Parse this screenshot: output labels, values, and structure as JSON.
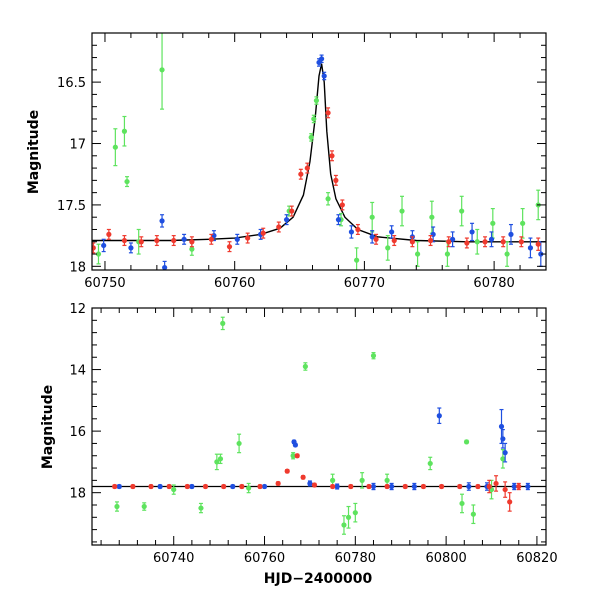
{
  "figure": {
    "xlabel": "HJD−2400000",
    "ylabel": "Magnitude"
  },
  "colors": {
    "green": "#5ee35e",
    "blue": "#1f4fe0",
    "red": "#ef3a2e",
    "model": "#000000"
  },
  "chart_data": [
    {
      "type": "scatter",
      "title": "",
      "xlabel": "",
      "ylabel": "Magnitude",
      "xlim": [
        60749,
        60784
      ],
      "ylim": [
        18.03,
        16.1
      ],
      "y_inverted": true,
      "xticks": [
        60750,
        60760,
        60770,
        60780
      ],
      "yticks": [
        16.5,
        17,
        17.5,
        18
      ],
      "ytick_labels": [
        "16.5",
        "17",
        "17.5",
        "18"
      ],
      "model_curve": {
        "x": [
          60749,
          60752,
          60755,
          60758,
          60760,
          60762,
          60763.5,
          60764.5,
          60765.3,
          60765.8,
          60766.2,
          60766.5,
          60766.7,
          60766.9,
          60767.1,
          60767.4,
          60767.8,
          60768.5,
          60769.5,
          60771,
          60774,
          60778,
          60784
        ],
        "y": [
          17.79,
          17.79,
          17.79,
          17.78,
          17.77,
          17.74,
          17.69,
          17.6,
          17.42,
          17.15,
          16.8,
          16.45,
          16.35,
          16.5,
          16.9,
          17.25,
          17.45,
          17.6,
          17.7,
          17.76,
          17.79,
          17.8,
          17.8
        ]
      },
      "series": [
        {
          "color": "green",
          "x": [
            60749.5,
            60750.8,
            60751.5,
            60751.7,
            60752.6,
            60754.4,
            60756.7,
            60764.2,
            60765.9,
            60766.1,
            60766.3,
            60767.2,
            60768.2,
            60769.4,
            60770.6,
            60771.8,
            60772.9,
            60774.1,
            60775.2,
            60776.4,
            60777.5,
            60778.7,
            60779.9,
            60781.0,
            60782.2,
            60783.4
          ],
          "y": [
            17.9,
            17.03,
            16.9,
            17.31,
            17.8,
            16.4,
            17.86,
            17.55,
            16.95,
            16.8,
            16.65,
            17.45,
            17.62,
            17.95,
            17.6,
            17.85,
            17.55,
            17.9,
            17.6,
            17.9,
            17.55,
            17.8,
            17.65,
            17.9,
            17.65,
            17.5
          ],
          "err": [
            0.08,
            0.15,
            0.12,
            0.04,
            0.1,
            0.32,
            0.05,
            0.04,
            0.03,
            0.03,
            0.03,
            0.05,
            0.05,
            0.1,
            0.12,
            0.1,
            0.12,
            0.1,
            0.13,
            0.1,
            0.12,
            0.1,
            0.12,
            0.1,
            0.12,
            0.12
          ]
        },
        {
          "color": "blue",
          "x": [
            60749.9,
            60752.0,
            60754.4,
            60754.6,
            60756.1,
            60758.4,
            60760.2,
            60762.0,
            60764.0,
            60766.5,
            60766.7,
            60766.9,
            60768.0,
            60769.0,
            60770.6,
            60772.1,
            60773.7,
            60775.3,
            60776.8,
            60778.3,
            60779.8,
            60781.3,
            60782.8,
            60783.6
          ],
          "y": [
            17.83,
            17.85,
            17.63,
            18.01,
            17.78,
            17.75,
            17.78,
            17.74,
            17.62,
            16.34,
            16.31,
            16.45,
            17.62,
            17.72,
            17.76,
            17.72,
            17.76,
            17.74,
            17.78,
            17.72,
            17.78,
            17.74,
            17.85,
            17.9
          ],
          "err": [
            0.05,
            0.04,
            0.05,
            0.05,
            0.04,
            0.04,
            0.04,
            0.04,
            0.04,
            0.03,
            0.03,
            0.03,
            0.04,
            0.05,
            0.05,
            0.05,
            0.05,
            0.06,
            0.06,
            0.07,
            0.06,
            0.08,
            0.08,
            0.1
          ]
        },
        {
          "color": "red",
          "x": [
            60749.1,
            60750.3,
            60751.5,
            60752.8,
            60754.0,
            60755.3,
            60756.7,
            60758.2,
            60759.6,
            60761.0,
            60762.2,
            60763.4,
            60764.4,
            60765.1,
            60765.6,
            60767.2,
            60767.5,
            60767.8,
            60768.3,
            60769.5,
            60770.9,
            60772.3,
            60773.7,
            60775.1,
            60776.5,
            60777.9,
            60779.3,
            60780.7,
            60782.1,
            60783.4
          ],
          "y": [
            17.85,
            17.74,
            17.79,
            17.8,
            17.79,
            17.79,
            17.8,
            17.78,
            17.84,
            17.77,
            17.73,
            17.68,
            17.55,
            17.25,
            17.2,
            16.75,
            17.1,
            17.3,
            17.5,
            17.7,
            17.78,
            17.79,
            17.8,
            17.79,
            17.8,
            17.81,
            17.8,
            17.8,
            17.8,
            17.82
          ],
          "err": [
            0.04,
            0.04,
            0.04,
            0.04,
            0.04,
            0.04,
            0.04,
            0.04,
            0.04,
            0.04,
            0.04,
            0.04,
            0.04,
            0.04,
            0.04,
            0.04,
            0.04,
            0.04,
            0.04,
            0.04,
            0.04,
            0.04,
            0.04,
            0.04,
            0.04,
            0.04,
            0.04,
            0.04,
            0.04,
            0.05
          ]
        }
      ]
    },
    {
      "type": "scatter",
      "title": "",
      "xlabel": "HJD−2400000",
      "ylabel": "Magnitude",
      "xlim": [
        60722,
        60822
      ],
      "ylim": [
        19.7,
        12
      ],
      "y_inverted": true,
      "xticks": [
        60740,
        60760,
        60780,
        60800,
        60820
      ],
      "yticks": [
        12,
        14,
        16,
        18
      ],
      "ytick_labels": [
        "12",
        "14",
        "16",
        "18"
      ],
      "reference_line": 17.8,
      "series": [
        {
          "color": "green",
          "x": [
            60727.5,
            60733.5,
            60740.0,
            60746.0,
            60749.5,
            60750.3,
            60750.8,
            60754.4,
            60756.5,
            60766.3,
            60769.0,
            60775.0,
            60777.5,
            60778.5,
            60780.0,
            60781.5,
            60784.0,
            60787.0,
            60796.5,
            60803.5,
            60804.5,
            60806.0,
            60810.0,
            60812.5
          ],
          "y": [
            18.45,
            18.45,
            17.9,
            18.5,
            17.0,
            16.9,
            12.5,
            16.4,
            17.85,
            16.8,
            13.9,
            17.6,
            19.05,
            18.8,
            18.65,
            17.6,
            13.55,
            17.6,
            17.05,
            18.35,
            16.35,
            18.7,
            17.9,
            16.9
          ],
          "err": [
            0.15,
            0.12,
            0.15,
            0.15,
            0.25,
            0.15,
            0.2,
            0.3,
            0.15,
            0.1,
            0.12,
            0.2,
            0.3,
            0.35,
            0.3,
            0.25,
            0.1,
            0.2,
            0.2,
            0.3,
            0.05,
            0.3,
            0.3,
            0.3
          ]
        },
        {
          "color": "blue",
          "x": [
            60728.0,
            60737.0,
            60744.0,
            60753.0,
            60760.0,
            60766.5,
            60766.8,
            60770.0,
            60776.0,
            60784.0,
            60788.0,
            60793.0,
            60798.5,
            60805.0,
            60809.0,
            60812.2,
            60812.5,
            60813.0,
            60815.0,
            60818.0
          ],
          "y": [
            17.8,
            17.8,
            17.8,
            17.8,
            17.8,
            16.35,
            16.45,
            17.7,
            17.8,
            17.8,
            17.8,
            17.8,
            15.5,
            17.8,
            17.8,
            15.85,
            16.25,
            16.7,
            17.8,
            17.8
          ],
          "err": [
            0.05,
            0.05,
            0.05,
            0.05,
            0.05,
            0.05,
            0.05,
            0.08,
            0.08,
            0.1,
            0.1,
            0.1,
            0.25,
            0.12,
            0.12,
            0.55,
            0.3,
            0.3,
            0.1,
            0.1
          ]
        },
        {
          "color": "red",
          "x": [
            60727.0,
            60731.0,
            60735.0,
            60739.0,
            60743.0,
            60747.0,
            60751.0,
            60755.0,
            60759.0,
            60763.0,
            60765.0,
            60767.2,
            60768.5,
            60771.0,
            60775.0,
            60779.0,
            60783.0,
            60787.0,
            60791.0,
            60795.0,
            60799.0,
            60803.0,
            60807.0,
            60809.5,
            60811.0,
            60813.0,
            60814.0,
            60816.0
          ],
          "y": [
            17.8,
            17.8,
            17.8,
            17.8,
            17.8,
            17.8,
            17.8,
            17.8,
            17.8,
            17.7,
            17.3,
            16.8,
            17.5,
            17.75,
            17.8,
            17.8,
            17.8,
            17.8,
            17.8,
            17.8,
            17.8,
            17.8,
            17.8,
            17.8,
            17.7,
            17.9,
            18.3,
            17.8
          ],
          "err": [
            0.05,
            0.05,
            0.05,
            0.05,
            0.05,
            0.05,
            0.05,
            0.05,
            0.05,
            0.05,
            0.05,
            0.05,
            0.05,
            0.05,
            0.05,
            0.05,
            0.05,
            0.05,
            0.05,
            0.05,
            0.05,
            0.05,
            0.05,
            0.2,
            0.25,
            0.25,
            0.3,
            0.1
          ]
        }
      ]
    }
  ]
}
